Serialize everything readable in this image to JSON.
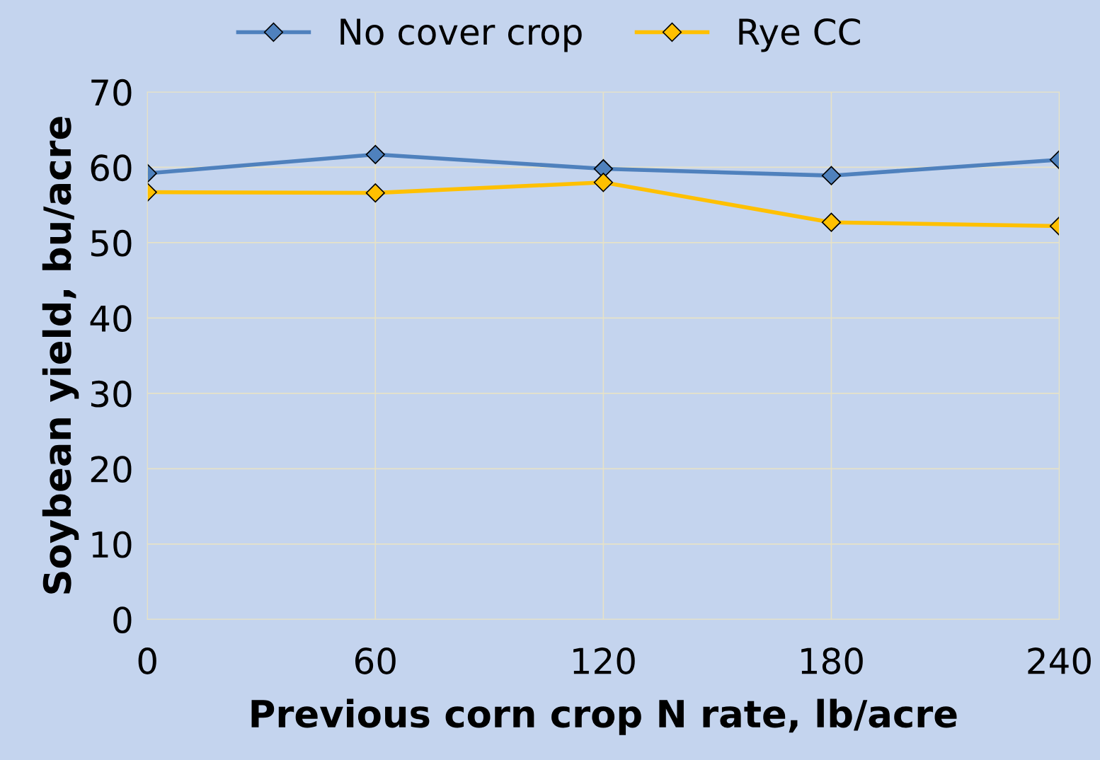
{
  "chart_data": {
    "type": "line",
    "xlabel": "Previous corn crop N rate, lb/acre",
    "ylabel": "Soybean yield, bu/acre",
    "x": [
      0,
      60,
      120,
      180,
      240
    ],
    "series": [
      {
        "name": "No cover crop",
        "color": "#4f81bd",
        "values": [
          59.2,
          61.7,
          59.8,
          58.9,
          61.0
        ]
      },
      {
        "name": "Rye CC",
        "color": "#ffc000",
        "values": [
          56.7,
          56.6,
          58.0,
          52.7,
          52.2
        ]
      }
    ],
    "xlim": [
      0,
      240
    ],
    "xticks": [
      0,
      60,
      120,
      180,
      240
    ],
    "ylim": [
      0,
      70
    ],
    "yticks": [
      0,
      10,
      20,
      30,
      40,
      50,
      60,
      70
    ],
    "grid": true,
    "legend": "top",
    "marker": "diamond",
    "line_style": "solid"
  }
}
